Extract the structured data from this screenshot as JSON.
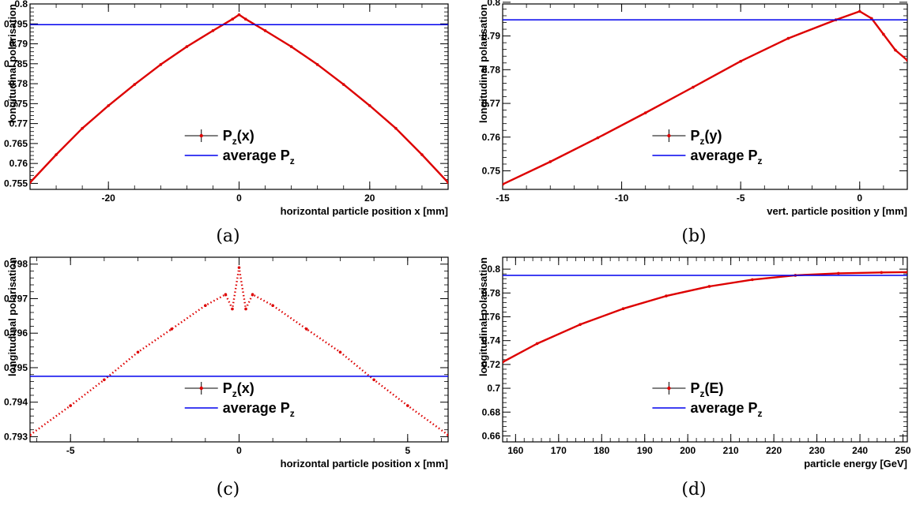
{
  "chart_data": [
    {
      "panel": "a",
      "caption": "(a)",
      "type": "scatter",
      "xlabel": "horizontal particle position x [mm]",
      "ylabel": "longitudinal polarisation",
      "xlim": [
        -32,
        32
      ],
      "ylim": [
        0.7535,
        0.8
      ],
      "xticks": [
        -20,
        0,
        20
      ],
      "xtick_labels": [
        "-20",
        "0",
        "20"
      ],
      "yticks": [
        0.755,
        0.76,
        0.765,
        0.77,
        0.775,
        0.78,
        0.785,
        0.79,
        0.795,
        0.8
      ],
      "ytick_labels": [
        "0.755",
        "0.76",
        "0.765",
        "0.77",
        "0.775",
        "0.78",
        "0.785",
        "0.79",
        "0.795",
        "0.8"
      ],
      "grid": false,
      "legend": {
        "position": "bottom-center",
        "entries": [
          {
            "base": "P",
            "sub": "z",
            "rest": "(x)",
            "kind": "marker",
            "color": "#dd0000"
          },
          {
            "base": "average P",
            "sub": "z",
            "rest": "",
            "kind": "line",
            "color": "#0000ee"
          }
        ]
      },
      "series": [
        {
          "label": "P_z(x)",
          "color": "#dd0000",
          "x": [
            -32,
            -28,
            -24,
            -20,
            -16,
            -12,
            -8,
            -4,
            -1,
            0,
            1,
            4,
            8,
            12,
            16,
            20,
            24,
            28,
            32
          ],
          "y": [
            0.7552,
            0.7622,
            0.7688,
            0.7745,
            0.7798,
            0.7848,
            0.7893,
            0.7933,
            0.7962,
            0.7973,
            0.7962,
            0.7933,
            0.7893,
            0.7848,
            0.7798,
            0.7745,
            0.7688,
            0.7622,
            0.7552
          ]
        },
        {
          "label": "average P_z",
          "color": "#0000ee",
          "x": [
            -32,
            32
          ],
          "y": [
            0.7948,
            0.7948
          ]
        }
      ]
    },
    {
      "panel": "b",
      "caption": "(b)",
      "type": "scatter",
      "xlabel": "vert. particle position y [mm]",
      "ylabel": "longitudinal polarisation",
      "xlim": [
        -15,
        2
      ],
      "ylim": [
        0.7445,
        0.7995
      ],
      "xticks": [
        -15,
        -10,
        -5,
        0
      ],
      "xtick_labels": [
        "-15",
        "-10",
        "-5",
        "0"
      ],
      "yticks": [
        0.75,
        0.76,
        0.77,
        0.78,
        0.79,
        0.8
      ],
      "ytick_labels": [
        "0.75",
        "0.76",
        "0.77",
        "0.78",
        "0.79",
        "0.8"
      ],
      "grid": false,
      "legend": {
        "position": "bottom-center",
        "entries": [
          {
            "base": "P",
            "sub": "z",
            "rest": "(y)",
            "kind": "marker",
            "color": "#dd0000"
          },
          {
            "base": "average P",
            "sub": "z",
            "rest": "",
            "kind": "line",
            "color": "#0000ee"
          }
        ]
      },
      "series": [
        {
          "label": "P_z(y)",
          "color": "#dd0000",
          "x": [
            -15,
            -13,
            -11,
            -9,
            -7,
            -5,
            -3,
            -1,
            0,
            0.5,
            1,
            1.5,
            2
          ],
          "y": [
            0.746,
            0.7527,
            0.7598,
            0.7672,
            0.7748,
            0.7825,
            0.7893,
            0.7948,
            0.7973,
            0.7952,
            0.7905,
            0.7858,
            0.7828
          ]
        },
        {
          "label": "average P_z",
          "color": "#0000ee",
          "x": [
            -15,
            2
          ],
          "y": [
            0.7948,
            0.7948
          ]
        }
      ]
    },
    {
      "panel": "c",
      "caption": "(c)",
      "type": "scatter",
      "xlabel": "horizontal particle position x [mm]",
      "ylabel": "longitudinal polarisation",
      "xlim": [
        -6.2,
        6.2
      ],
      "ylim": [
        0.79285,
        0.7982
      ],
      "xticks": [
        -5,
        0,
        5
      ],
      "xtick_labels": [
        "-5",
        "0",
        "5"
      ],
      "yticks": [
        0.793,
        0.794,
        0.795,
        0.796,
        0.797,
        0.798
      ],
      "ytick_labels": [
        "0.793",
        "0.794",
        "0.795",
        "0.796",
        "0.797",
        "0.798"
      ],
      "grid": false,
      "legend": {
        "position": "bottom-center",
        "entries": [
          {
            "base": "P",
            "sub": "z",
            "rest": "(x)",
            "kind": "marker",
            "color": "#dd0000"
          },
          {
            "base": "average P",
            "sub": "z",
            "rest": "",
            "kind": "line",
            "color": "#0000ee"
          }
        ]
      },
      "series": [
        {
          "label": "P_z(x)",
          "color": "#dd0000",
          "x": [
            -6.2,
            -5,
            -4,
            -3,
            -2,
            -1,
            -0.4,
            -0.2,
            0,
            0.2,
            0.4,
            1,
            2,
            3,
            4,
            5,
            6.2
          ],
          "y": [
            0.79305,
            0.7939,
            0.79465,
            0.79545,
            0.79612,
            0.7968,
            0.79712,
            0.7967,
            0.7979,
            0.7967,
            0.79712,
            0.7968,
            0.79612,
            0.79545,
            0.79465,
            0.7939,
            0.79305
          ]
        },
        {
          "label": "average P_z",
          "color": "#0000ee",
          "x": [
            -6.2,
            6.2
          ],
          "y": [
            0.79475,
            0.79475
          ]
        }
      ]
    },
    {
      "panel": "d",
      "caption": "(d)",
      "type": "scatter",
      "xlabel": "particle energy [GeV]",
      "ylabel": "longitudinal polarisation",
      "xlim": [
        157,
        251
      ],
      "ylim": [
        0.655,
        0.81
      ],
      "xticks": [
        160,
        170,
        180,
        190,
        200,
        210,
        220,
        230,
        240,
        250
      ],
      "xtick_labels": [
        "160",
        "170",
        "180",
        "190",
        "200",
        "210",
        "220",
        "230",
        "240",
        "250"
      ],
      "yticks": [
        0.66,
        0.68,
        0.7,
        0.72,
        0.74,
        0.76,
        0.78,
        0.8
      ],
      "ytick_labels": [
        "0.66",
        "0.68",
        "0.7",
        "0.72",
        "0.74",
        "0.76",
        "0.78",
        "0.8"
      ],
      "grid": false,
      "legend": {
        "position": "bottom-center",
        "entries": [
          {
            "base": "P",
            "sub": "z",
            "rest": "(E)",
            "kind": "marker",
            "color": "#dd0000"
          },
          {
            "base": "average P",
            "sub": "z",
            "rest": "",
            "kind": "line",
            "color": "#0000ee"
          }
        ]
      },
      "series": [
        {
          "label": "P_z(E)",
          "color": "#dd0000",
          "x": [
            157,
            165,
            175,
            185,
            195,
            205,
            215,
            225,
            235,
            245,
            251
          ],
          "y": [
            0.722,
            0.7375,
            0.7535,
            0.7668,
            0.7775,
            0.7855,
            0.7912,
            0.7948,
            0.7965,
            0.7972,
            0.7975
          ]
        },
        {
          "label": "average P_z",
          "color": "#0000ee",
          "x": [
            157,
            251
          ],
          "y": [
            0.7948,
            0.7948
          ]
        }
      ]
    }
  ]
}
